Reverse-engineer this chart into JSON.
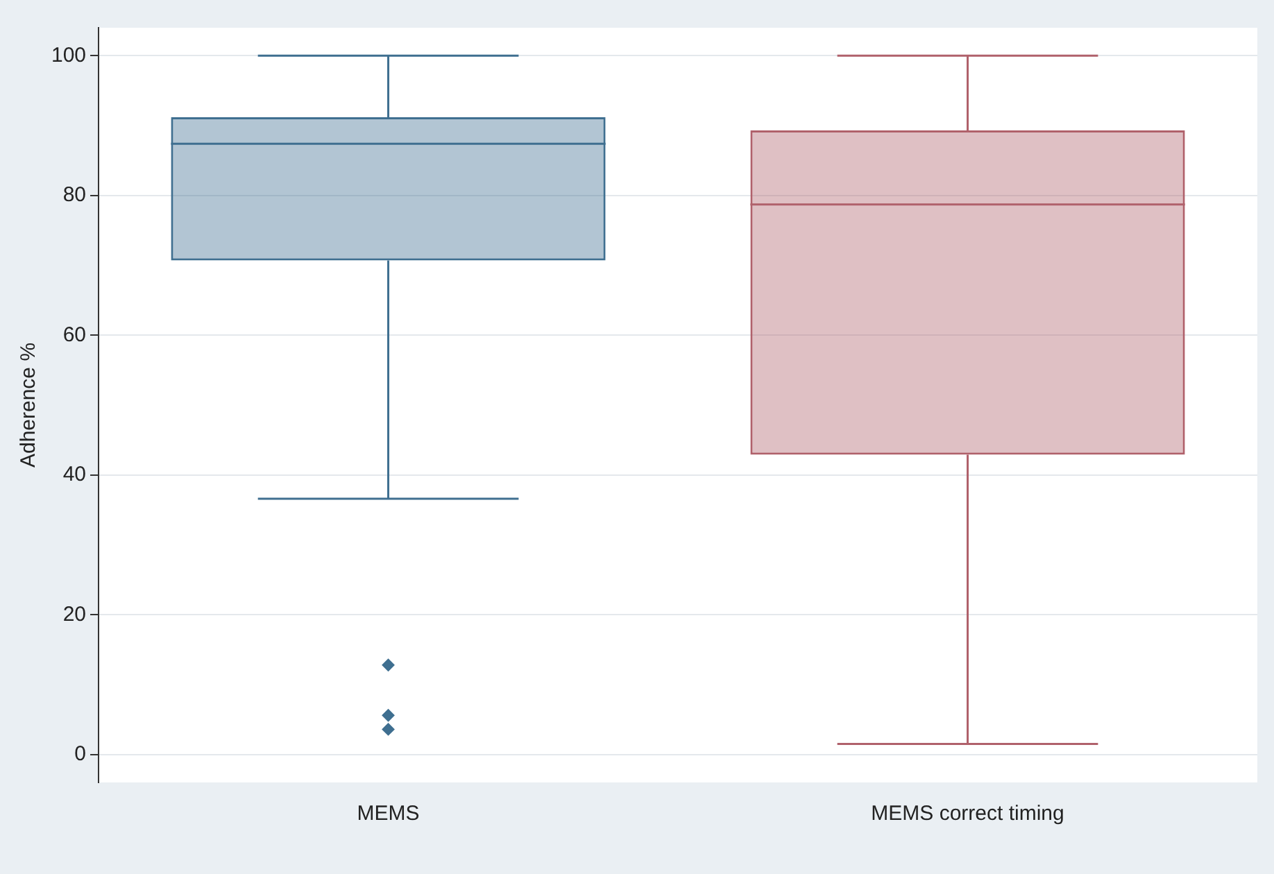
{
  "chart_data": {
    "type": "box",
    "ylabel": "Adherence %",
    "categories": [
      "MEMS",
      "MEMS correct timing"
    ],
    "colors": [
      "#3f6f90",
      "#b0616b"
    ],
    "boxes": [
      {
        "low": 36.6,
        "q1": 70.7,
        "median": 87.4,
        "q3": 91.2,
        "high": 100,
        "outliers": [
          12.8,
          5.6,
          3.6
        ]
      },
      {
        "low": 1.5,
        "q1": 42.9,
        "median": 78.7,
        "q3": 89.3,
        "high": 100
      }
    ],
    "ylim": [
      -4,
      104
    ],
    "yticks": [
      0,
      20,
      40,
      60,
      80,
      100
    ],
    "grid": "y",
    "legend": false
  }
}
